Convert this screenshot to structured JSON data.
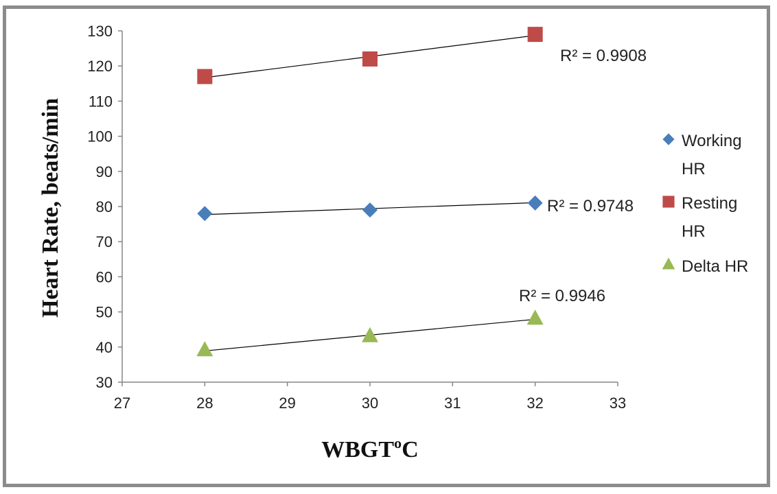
{
  "chart_data": {
    "type": "scatter",
    "xlabel": "WBGTºC",
    "ylabel": "Heart Rate, beats/min",
    "xlim": [
      27,
      33
    ],
    "ylim": [
      30,
      130
    ],
    "xticks": [
      "27",
      "28",
      "29",
      "30",
      "31",
      "32",
      "33"
    ],
    "yticks": [
      "30",
      "40",
      "50",
      "60",
      "70",
      "80",
      "90",
      "100",
      "110",
      "120",
      "130"
    ],
    "grid": false,
    "legend_position": "right",
    "x": [
      28,
      30,
      32
    ],
    "series": [
      {
        "name": "Working HR",
        "legend_lines": [
          "Working",
          "HR"
        ],
        "marker": "diamond",
        "color": "#4a7ebb",
        "values": [
          78,
          79,
          81
        ],
        "trendline": [
          77.7,
          81.1
        ],
        "r2_label": "R² = 0.9748"
      },
      {
        "name": "Resting HR",
        "legend_lines": [
          "Resting",
          "HR"
        ],
        "marker": "square",
        "color": "#be4b48",
        "values": [
          117,
          122,
          129
        ],
        "trendline": [
          116.7,
          128.7
        ],
        "r2_label": "R² = 0.9908"
      },
      {
        "name": "Delta HR",
        "legend_lines": [
          "Delta HR"
        ],
        "marker": "triangle",
        "color": "#98b954",
        "values": [
          39,
          43,
          48
        ],
        "trendline": [
          38.9,
          47.9
        ],
        "r2_label": "R² = 0.9946"
      }
    ]
  }
}
